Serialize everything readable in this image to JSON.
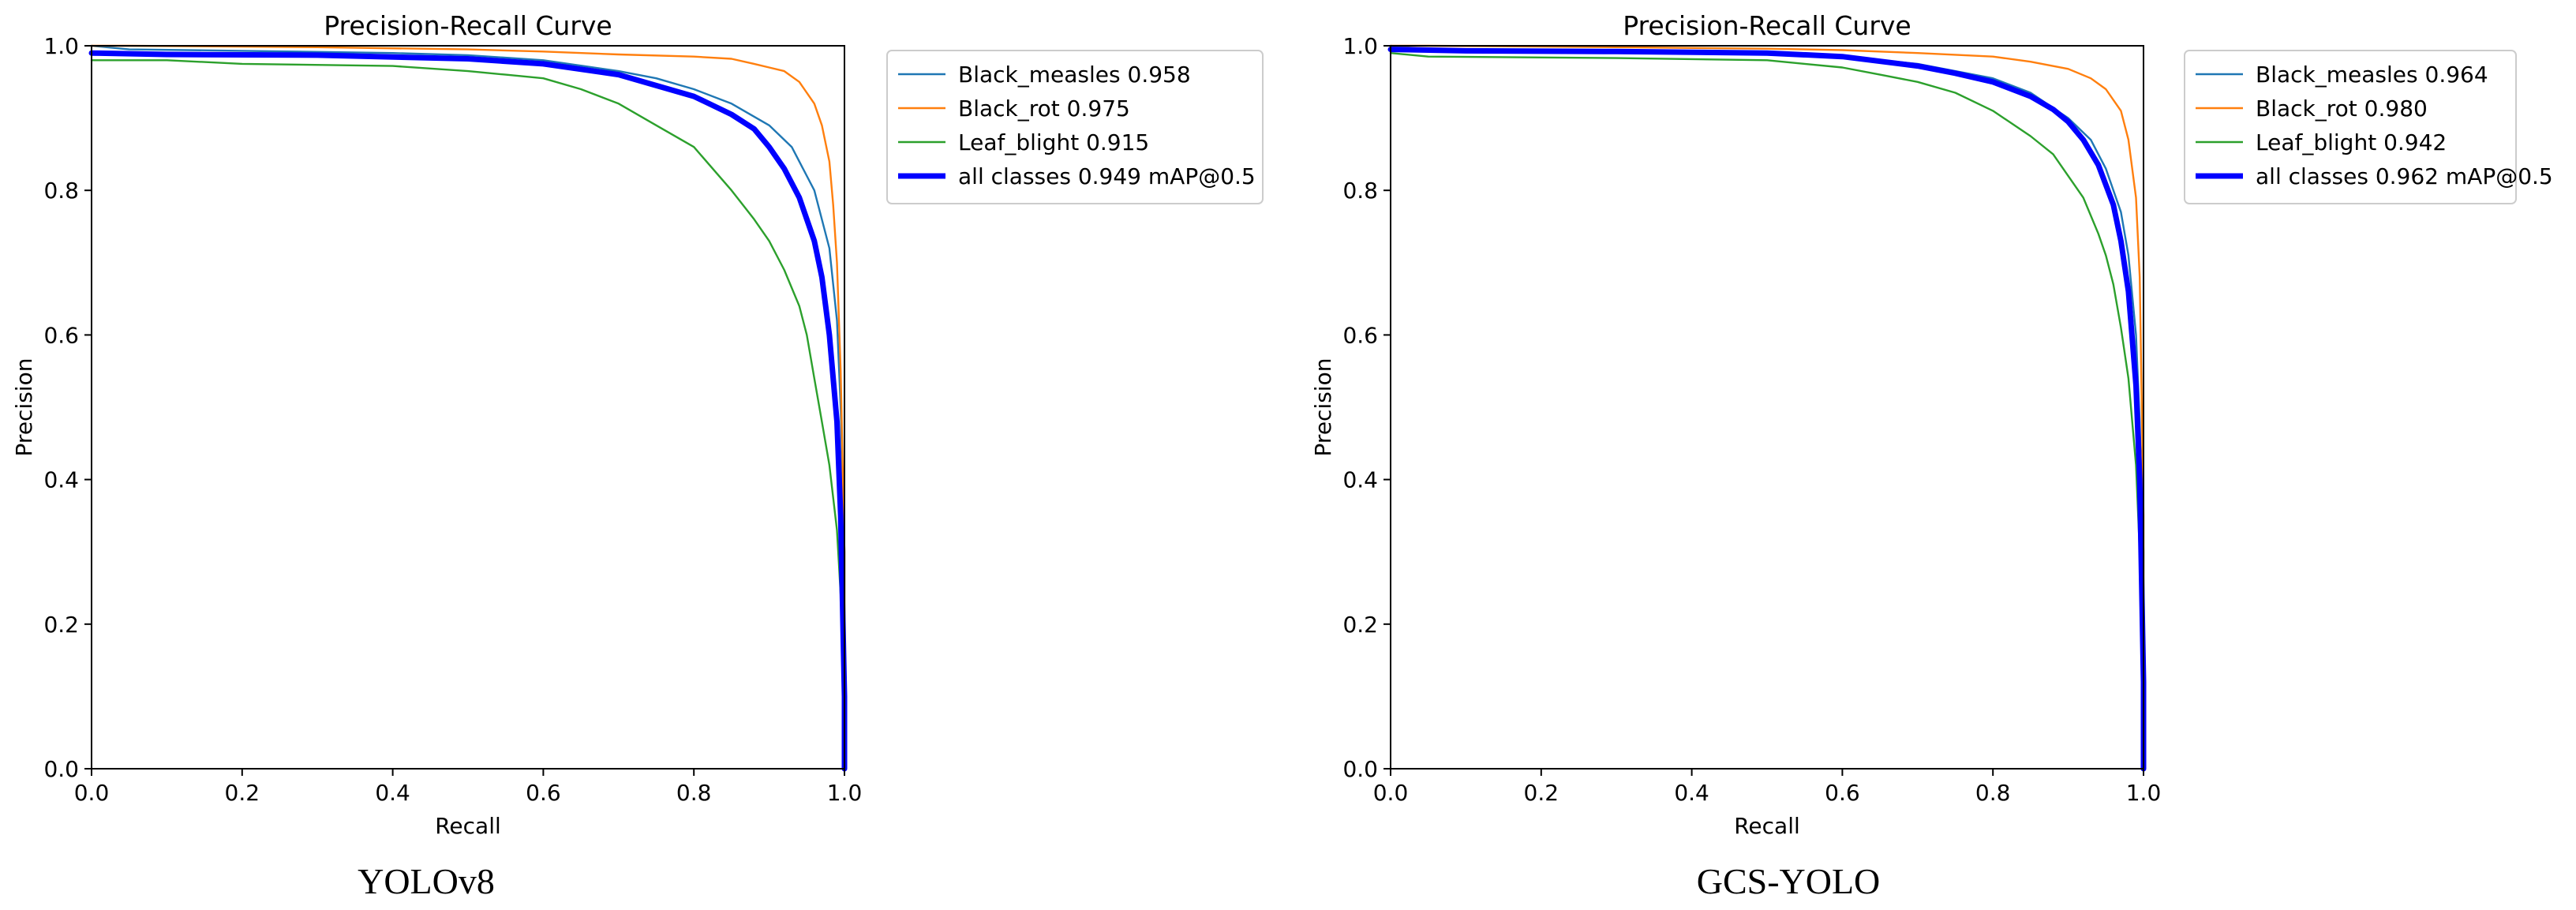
{
  "chart_data": [
    {
      "type": "line",
      "title": "Precision-Recall Curve",
      "xlabel": "Recall",
      "ylabel": "Precision",
      "xlim": [
        0,
        1
      ],
      "ylim": [
        0,
        1
      ],
      "xticks": [
        "0.0",
        "0.2",
        "0.4",
        "0.6",
        "0.8",
        "1.0"
      ],
      "yticks": [
        "0.0",
        "0.2",
        "0.4",
        "0.6",
        "0.8",
        "1.0"
      ],
      "grid": false,
      "legend_position": "outside-top-right",
      "caption": "YOLOv8",
      "series": [
        {
          "name": "Black_measles 0.958",
          "color": "#1f77b4",
          "width": "thin",
          "x": [
            0,
            0.05,
            0.2,
            0.4,
            0.5,
            0.6,
            0.7,
            0.75,
            0.8,
            0.85,
            0.9,
            0.93,
            0.96,
            0.98,
            0.99,
            0.995,
            1.0,
            1.0
          ],
          "y": [
            1.0,
            0.995,
            0.993,
            0.99,
            0.987,
            0.98,
            0.965,
            0.955,
            0.94,
            0.92,
            0.89,
            0.86,
            0.8,
            0.72,
            0.62,
            0.5,
            0.3,
            0.0
          ]
        },
        {
          "name": "Black_rot 0.975",
          "color": "#ff7f0e",
          "width": "thin",
          "x": [
            0,
            0.05,
            0.3,
            0.5,
            0.6,
            0.7,
            0.8,
            0.85,
            0.88,
            0.9,
            0.92,
            0.94,
            0.96,
            0.97,
            0.98,
            0.985,
            0.99,
            0.995,
            1.0,
            1.0
          ],
          "y": [
            1.0,
            1.0,
            0.998,
            0.995,
            0.992,
            0.988,
            0.985,
            0.982,
            0.975,
            0.97,
            0.965,
            0.95,
            0.92,
            0.89,
            0.84,
            0.78,
            0.7,
            0.55,
            0.3,
            0.0
          ]
        },
        {
          "name": "Leaf_blight 0.915",
          "color": "#2ca02c",
          "width": "thin",
          "x": [
            0,
            0.1,
            0.2,
            0.4,
            0.5,
            0.55,
            0.6,
            0.65,
            0.7,
            0.75,
            0.8,
            0.85,
            0.88,
            0.9,
            0.92,
            0.94,
            0.95,
            0.96,
            0.97,
            0.98,
            0.99,
            1.0,
            1.0
          ],
          "y": [
            0.98,
            0.98,
            0.975,
            0.972,
            0.965,
            0.96,
            0.955,
            0.94,
            0.92,
            0.89,
            0.86,
            0.8,
            0.76,
            0.73,
            0.69,
            0.64,
            0.6,
            0.54,
            0.48,
            0.42,
            0.33,
            0.15,
            0.0
          ]
        },
        {
          "name": "all classes 0.949 mAP@0.5",
          "color": "#0000ff",
          "width": "thick",
          "x": [
            0,
            0.1,
            0.3,
            0.5,
            0.6,
            0.7,
            0.75,
            0.8,
            0.85,
            0.88,
            0.9,
            0.92,
            0.94,
            0.96,
            0.97,
            0.98,
            0.99,
            0.995,
            1.0,
            1.0
          ],
          "y": [
            0.99,
            0.988,
            0.987,
            0.982,
            0.975,
            0.96,
            0.945,
            0.93,
            0.905,
            0.885,
            0.86,
            0.83,
            0.79,
            0.73,
            0.68,
            0.6,
            0.48,
            0.35,
            0.1,
            0.0
          ]
        }
      ]
    },
    {
      "type": "line",
      "title": "Precision-Recall Curve",
      "xlabel": "Recall",
      "ylabel": "Precision",
      "xlim": [
        0,
        1
      ],
      "ylim": [
        0,
        1
      ],
      "xticks": [
        "0.0",
        "0.2",
        "0.4",
        "0.6",
        "0.8",
        "1.0"
      ],
      "yticks": [
        "0.0",
        "0.2",
        "0.4",
        "0.6",
        "0.8",
        "1.0"
      ],
      "grid": false,
      "legend_position": "outside-top-right",
      "caption": "GCS-YOLO",
      "series": [
        {
          "name": "Black_measles 0.964",
          "color": "#1f77b4",
          "width": "thin",
          "x": [
            0,
            0.05,
            0.3,
            0.5,
            0.6,
            0.7,
            0.75,
            0.8,
            0.85,
            0.9,
            0.93,
            0.95,
            0.97,
            0.98,
            0.99,
            0.995,
            1.0,
            1.0
          ],
          "y": [
            1.0,
            0.995,
            0.993,
            0.99,
            0.985,
            0.975,
            0.965,
            0.955,
            0.935,
            0.9,
            0.87,
            0.83,
            0.77,
            0.71,
            0.6,
            0.48,
            0.3,
            0.0
          ]
        },
        {
          "name": "Black_rot 0.980",
          "color": "#ff7f0e",
          "width": "thin",
          "x": [
            0,
            0.05,
            0.3,
            0.5,
            0.6,
            0.7,
            0.8,
            0.85,
            0.9,
            0.93,
            0.95,
            0.97,
            0.98,
            0.99,
            0.995,
            1.0,
            1.0
          ],
          "y": [
            1.0,
            1.0,
            0.998,
            0.996,
            0.994,
            0.99,
            0.985,
            0.978,
            0.968,
            0.955,
            0.94,
            0.91,
            0.87,
            0.79,
            0.68,
            0.35,
            0.0
          ]
        },
        {
          "name": "Leaf_blight 0.942",
          "color": "#2ca02c",
          "width": "thin",
          "x": [
            0,
            0.05,
            0.3,
            0.5,
            0.55,
            0.6,
            0.65,
            0.7,
            0.75,
            0.8,
            0.85,
            0.88,
            0.9,
            0.92,
            0.94,
            0.95,
            0.96,
            0.97,
            0.98,
            0.99,
            0.995,
            1.0,
            1.0
          ],
          "y": [
            0.99,
            0.985,
            0.983,
            0.98,
            0.975,
            0.97,
            0.96,
            0.95,
            0.935,
            0.91,
            0.875,
            0.85,
            0.82,
            0.79,
            0.74,
            0.71,
            0.67,
            0.61,
            0.54,
            0.42,
            0.3,
            0.1,
            0.0
          ]
        },
        {
          "name": "all classes 0.962 mAP@0.5",
          "color": "#0000ff",
          "width": "thick",
          "x": [
            0,
            0.1,
            0.3,
            0.5,
            0.6,
            0.7,
            0.75,
            0.8,
            0.85,
            0.88,
            0.9,
            0.92,
            0.94,
            0.96,
            0.97,
            0.98,
            0.99,
            0.995,
            1.0,
            1.0
          ],
          "y": [
            0.995,
            0.993,
            0.992,
            0.99,
            0.985,
            0.972,
            0.962,
            0.95,
            0.93,
            0.912,
            0.895,
            0.87,
            0.835,
            0.78,
            0.73,
            0.66,
            0.53,
            0.4,
            0.12,
            0.0
          ]
        }
      ]
    }
  ]
}
